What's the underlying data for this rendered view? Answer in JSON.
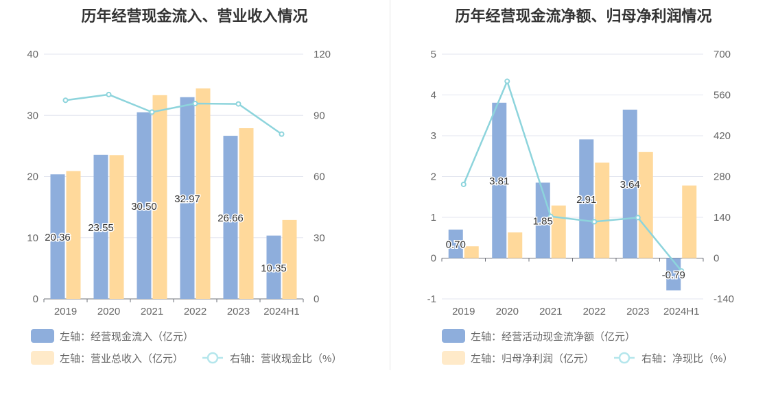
{
  "chart_data": [
    {
      "type": "bar",
      "title": "历年经营现金流入、营业收入情况",
      "categories": [
        "2019",
        "2020",
        "2021",
        "2022",
        "2023",
        "2024H1"
      ],
      "left_axis": {
        "min": 0,
        "max": 40,
        "ticks": [
          0,
          10,
          20,
          30,
          40
        ]
      },
      "right_axis": {
        "min": 0,
        "max": 120,
        "ticks": [
          0,
          30,
          60,
          90,
          120
        ]
      },
      "bar_series": [
        {
          "name": "左轴：经营现金流入（亿元）",
          "values": [
            20.36,
            23.55,
            30.5,
            32.97,
            26.66,
            10.35
          ],
          "labels": [
            "20.36",
            "23.55",
            "30.50",
            "32.97",
            "26.66",
            "10.35"
          ],
          "color": "#8eaedc"
        },
        {
          "name": "左轴：营业总收入（亿元）",
          "values": [
            20.9,
            23.5,
            33.3,
            34.4,
            27.9,
            12.9
          ],
          "color": "#ffd99b"
        }
      ],
      "line_series": {
        "name": "右轴：营收现金比（%）",
        "values": [
          97.4,
          100.2,
          91.6,
          95.8,
          95.6,
          80.8
        ],
        "color": "#8dd4dc"
      },
      "grid": true,
      "legend_position": "bottom"
    },
    {
      "type": "bar",
      "title": "历年经营现金流净额、归母净利润情况",
      "categories": [
        "2019",
        "2020",
        "2021",
        "2022",
        "2023",
        "2024H1"
      ],
      "left_axis": {
        "min": -1,
        "max": 5,
        "ticks": [
          -1,
          0,
          1,
          2,
          3,
          4,
          5
        ]
      },
      "right_axis": {
        "min": -140,
        "max": 700,
        "ticks": [
          -140,
          0,
          140,
          280,
          420,
          560,
          700
        ]
      },
      "bar_series": [
        {
          "name": "左轴：经营活动现金流净额（亿元）",
          "values": [
            0.7,
            3.81,
            1.85,
            2.91,
            3.64,
            -0.79
          ],
          "labels": [
            "0.70",
            "3.81",
            "1.85",
            "2.91",
            "3.64",
            "-0.79"
          ],
          "color": "#8eaedc"
        },
        {
          "name": "左轴：归母净利润（亿元）",
          "values": [
            0.29,
            0.63,
            1.29,
            2.34,
            2.6,
            1.78
          ],
          "color": "#ffd99b"
        }
      ],
      "line_series": {
        "name": "右轴：净现比（%）",
        "values": [
          253,
          607,
          143,
          125,
          139,
          -44
        ],
        "color": "#8dd4dc"
      },
      "grid": true,
      "legend_position": "bottom"
    }
  ]
}
